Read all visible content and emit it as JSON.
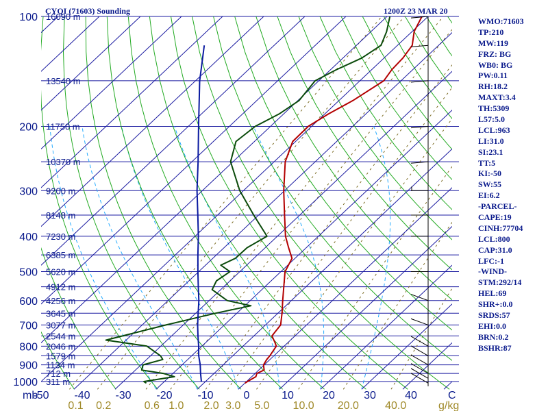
{
  "chart_data": {
    "type": "line",
    "title": "CYQI (71603) Sounding",
    "valid_time": "1200Z 23 MAR 20",
    "pressure_axis": {
      "label": "mb",
      "ticks": [
        100,
        200,
        300,
        400,
        500,
        600,
        700,
        800,
        900,
        1000
      ],
      "range": [
        100,
        1050
      ],
      "scale": "log"
    },
    "temperature_axis": {
      "label": "C",
      "ticks": [
        -50,
        -40,
        -30,
        -20,
        -10,
        0,
        10,
        20,
        30,
        40
      ],
      "range": [
        -50,
        50
      ]
    },
    "mixing_ratio_axis": {
      "label": "g/kg",
      "ticks": [
        "0.1",
        "0.2",
        "0.6",
        "1.0",
        "2.0",
        "3.0",
        "5.0",
        "10.0",
        "20.0",
        "40.0"
      ]
    },
    "height_labels": [
      {
        "p": 100,
        "text": "16090 m"
      },
      {
        "p": 150,
        "text": "13540 m"
      },
      {
        "p": 200,
        "text": "11750 m"
      },
      {
        "p": 250,
        "text": "10370 m"
      },
      {
        "p": 300,
        "text": "9200 m"
      },
      {
        "p": 350,
        "text": "8148 m"
      },
      {
        "p": 400,
        "text": "7230 m"
      },
      {
        "p": 450,
        "text": "6385 m"
      },
      {
        "p": 500,
        "text": "5620 m"
      },
      {
        "p": 550,
        "text": "4912 m"
      },
      {
        "p": 600,
        "text": "4256 m"
      },
      {
        "p": 650,
        "text": "3645 m"
      },
      {
        "p": 700,
        "text": "3077 m"
      },
      {
        "p": 750,
        "text": "2544 m"
      },
      {
        "p": 800,
        "text": "2046 m"
      },
      {
        "p": 850,
        "text": "1579 m"
      },
      {
        "p": 900,
        "text": "1134 m"
      },
      {
        "p": 950,
        "text": "712 m"
      },
      {
        "p": 1000,
        "text": "311 m"
      }
    ],
    "series": [
      {
        "points": [
          {
            "p": 1010,
            "t": 0.0
          },
          {
            "p": 1000,
            "t": 0.2
          },
          {
            "p": 970,
            "t": 1.0
          },
          {
            "p": 950,
            "t": 0.4
          },
          {
            "p": 930,
            "t": 1.3
          },
          {
            "p": 900,
            "t": -0.2
          },
          {
            "p": 870,
            "t": -0.8
          },
          {
            "p": 850,
            "t": -1.0
          },
          {
            "p": 800,
            "t": -1.9
          },
          {
            "p": 780,
            "t": -3.3
          },
          {
            "p": 750,
            "t": -5.6
          },
          {
            "p": 700,
            "t": -6.3
          },
          {
            "p": 650,
            "t": -9.0
          },
          {
            "p": 600,
            "t": -12.1
          },
          {
            "p": 550,
            "t": -15.4
          },
          {
            "p": 500,
            "t": -19.0
          },
          {
            "p": 460,
            "t": -20.7
          },
          {
            "p": 430,
            "t": -24.3
          },
          {
            "p": 400,
            "t": -28.0
          },
          {
            "p": 350,
            "t": -33.7
          },
          {
            "p": 300,
            "t": -40.2
          },
          {
            "p": 250,
            "t": -47.3
          },
          {
            "p": 220,
            "t": -50.7
          },
          {
            "p": 200,
            "t": -50.8
          },
          {
            "p": 185,
            "t": -49.1
          },
          {
            "p": 170,
            "t": -46.6
          },
          {
            "p": 150,
            "t": -44.2
          },
          {
            "p": 140,
            "t": -45.1
          },
          {
            "p": 130,
            "t": -45.4
          },
          {
            "p": 120,
            "t": -46.4
          },
          {
            "p": 110,
            "t": -49.5
          },
          {
            "p": 100,
            "t": -51.5
          }
        ]
      },
      {
        "points": [
          {
            "p": 1010,
            "t": -24.0
          },
          {
            "p": 1000,
            "t": -25.0
          },
          {
            "p": 970,
            "t": -18.8
          },
          {
            "p": 950,
            "t": -22.4
          },
          {
            "p": 930,
            "t": -28.5
          },
          {
            "p": 900,
            "t": -29.5
          },
          {
            "p": 870,
            "t": -26.1
          },
          {
            "p": 850,
            "t": -27.6
          },
          {
            "p": 800,
            "t": -33.4
          },
          {
            "p": 770,
            "t": -44.9
          },
          {
            "p": 700,
            "t": -34.2
          },
          {
            "p": 650,
            "t": -25.2
          },
          {
            "p": 620,
            "t": -18.5
          },
          {
            "p": 600,
            "t": -25.6
          },
          {
            "p": 560,
            "t": -32.1
          },
          {
            "p": 530,
            "t": -33.3
          },
          {
            "p": 500,
            "t": -32.4
          },
          {
            "p": 480,
            "t": -36.3
          },
          {
            "p": 460,
            "t": -34.5
          },
          {
            "p": 430,
            "t": -34.4
          },
          {
            "p": 400,
            "t": -32.5
          },
          {
            "p": 350,
            "t": -41.2
          },
          {
            "p": 300,
            "t": -50.9
          },
          {
            "p": 250,
            "t": -60.6
          },
          {
            "p": 220,
            "t": -64.5
          },
          {
            "p": 200,
            "t": -63.7
          },
          {
            "p": 185,
            "t": -61.1
          },
          {
            "p": 170,
            "t": -59.7
          },
          {
            "p": 150,
            "t": -60.9
          },
          {
            "p": 140,
            "t": -58.6
          },
          {
            "p": 130,
            "t": -55.4
          },
          {
            "p": 120,
            "t": -54.0
          },
          {
            "p": 110,
            "t": -56.2
          },
          {
            "p": 100,
            "t": -59.3
          }
        ]
      },
      {
        "points": [
          {
            "p": 1000,
            "t": -11.0
          },
          {
            "p": 950,
            "t": -13.3
          },
          {
            "p": 900,
            "t": -15.6
          },
          {
            "p": 850,
            "t": -18.3
          },
          {
            "p": 800,
            "t": -20.8
          },
          {
            "p": 750,
            "t": -23.6
          },
          {
            "p": 700,
            "t": -26.5
          },
          {
            "p": 650,
            "t": -29.4
          },
          {
            "p": 600,
            "t": -32.5
          },
          {
            "p": 550,
            "t": -36.2
          },
          {
            "p": 500,
            "t": -40.2
          },
          {
            "p": 450,
            "t": -44.5
          },
          {
            "p": 400,
            "t": -49.2
          },
          {
            "p": 350,
            "t": -54.8
          },
          {
            "p": 300,
            "t": -61.3
          },
          {
            "p": 250,
            "t": -68.5
          },
          {
            "p": 200,
            "t": -77.5
          },
          {
            "p": 150,
            "t": -89.0
          },
          {
            "p": 120,
            "t": -97.0
          }
        ]
      }
    ],
    "wind_profile": [
      {
        "p": 1010,
        "dir": 300,
        "spd": 15
      },
      {
        "p": 980,
        "dir": 300,
        "spd": 15
      },
      {
        "p": 950,
        "dir": 300,
        "spd": 15
      },
      {
        "p": 900,
        "dir": 300,
        "spd": 15
      },
      {
        "p": 850,
        "dir": 300,
        "spd": 15
      },
      {
        "p": 800,
        "dir": 300,
        "spd": 15
      },
      {
        "p": 700,
        "dir": 290,
        "spd": 20
      },
      {
        "p": 600,
        "dir": 290,
        "spd": 25
      },
      {
        "p": 500,
        "dir": 270,
        "spd": 30
      },
      {
        "p": 400,
        "dir": 270,
        "spd": 35
      },
      {
        "p": 350,
        "dir": 270,
        "spd": 40
      },
      {
        "p": 300,
        "dir": 270,
        "spd": 45
      },
      {
        "p": 250,
        "dir": 265,
        "spd": 50
      },
      {
        "p": 200,
        "dir": 265,
        "spd": 50
      },
      {
        "p": 150,
        "dir": 265,
        "spd": 60
      },
      {
        "p": 120,
        "dir": 265,
        "spd": 65
      },
      {
        "p": 100,
        "dir": 265,
        "spd": 60
      }
    ],
    "colors": {
      "isobar": "#1a1aa0",
      "isotherm": "#1a1aa0",
      "dry_adiabat": "#22aa22",
      "moist_adiabat": "#22aaff",
      "mixing_ratio": "#7a6a20",
      "temperature": "#b30000",
      "dewpoint": "#0a4a0a",
      "parcel": "#0a1aa0",
      "text": "#0a1a8c"
    }
  },
  "indices": [
    "WMO:71603",
    "TP:210",
    "MW:119",
    "FRZ: BG",
    "WB0: BG",
    "PW:0.11",
    "RH:18.2",
    "MAXT:3.4",
    "TH:5309",
    "L57:5.0",
    "LCL:963",
    "LI:31.0",
    "SI:23.1",
    "TT:5",
    "KI:-50",
    "SW:55",
    "EI:6.2",
    "-PARCEL-",
    "CAPE:19",
    "CINH:77704",
    "LCL:800",
    "CAP:31.0",
    "LFC:-1",
    "-WIND-",
    "STM:292/14",
    "HEL:69",
    "SHR+:0.0",
    "SRDS:57",
    "EHI:0.0",
    "BRN:0.2",
    "BSHR:87"
  ]
}
